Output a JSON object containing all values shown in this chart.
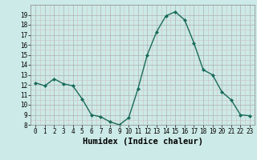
{
  "xlabel": "Humidex (Indice chaleur)",
  "x": [
    0,
    1,
    2,
    3,
    4,
    5,
    6,
    7,
    8,
    9,
    10,
    11,
    12,
    13,
    14,
    15,
    16,
    17,
    18,
    19,
    20,
    21,
    22,
    23
  ],
  "y": [
    12.2,
    11.9,
    12.6,
    12.1,
    11.9,
    10.6,
    9.0,
    8.8,
    8.3,
    8.0,
    8.7,
    11.6,
    15.0,
    17.3,
    18.9,
    19.3,
    18.5,
    16.2,
    13.5,
    13.0,
    11.3,
    10.5,
    9.0,
    8.9
  ],
  "line_color": "#1a6b5a",
  "marker": "D",
  "marker_size": 2,
  "bg_color": "#cceae7",
  "grid_major_color": "#b0b0b0",
  "grid_minor_color": "#d4c0c0",
  "ylim": [
    8,
    20
  ],
  "yticks": [
    8,
    9,
    10,
    11,
    12,
    13,
    14,
    15,
    16,
    17,
    18,
    19
  ],
  "xlim": [
    -0.5,
    23.5
  ],
  "xticks": [
    0,
    1,
    2,
    3,
    4,
    5,
    6,
    7,
    8,
    9,
    10,
    11,
    12,
    13,
    14,
    15,
    16,
    17,
    18,
    19,
    20,
    21,
    22,
    23
  ],
  "tick_label_fontsize": 5.5,
  "xlabel_fontsize": 7.5,
  "linewidth": 1.0
}
